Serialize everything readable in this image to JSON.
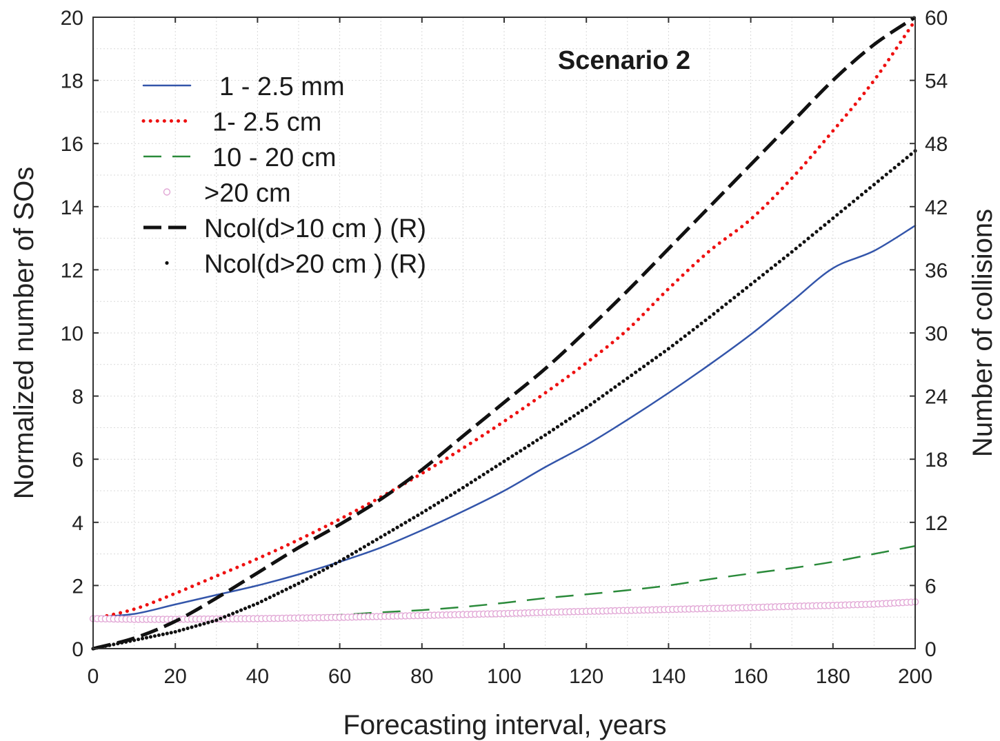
{
  "chart_data": {
    "type": "line",
    "annotation": "Scenario 2",
    "xlabel": "Forecasting interval, years",
    "ylabel": "Normalized number of SOs",
    "y2label": "Number of collisions",
    "xlim": [
      0,
      200
    ],
    "ylim": [
      0,
      20
    ],
    "y2lim": [
      0,
      60
    ],
    "xticks": [
      0,
      20,
      40,
      60,
      80,
      100,
      120,
      140,
      160,
      180,
      200
    ],
    "yticks": [
      0,
      2,
      4,
      6,
      8,
      10,
      12,
      14,
      16,
      18,
      20
    ],
    "y2ticks": [
      0,
      6,
      12,
      18,
      24,
      30,
      36,
      42,
      48,
      54,
      60
    ],
    "grid": true,
    "legend_position": "top-left",
    "series": [
      {
        "name": "1 - 2.5 mm",
        "axis": "left",
        "color": "#3355aa",
        "style": "solid",
        "x": [
          0,
          10,
          20,
          30,
          40,
          50,
          60,
          70,
          80,
          90,
          100,
          110,
          120,
          130,
          140,
          150,
          160,
          170,
          180,
          190,
          200
        ],
        "y": [
          1.0,
          1.1,
          1.4,
          1.7,
          2.0,
          2.35,
          2.75,
          3.2,
          3.75,
          4.35,
          5.0,
          5.75,
          6.45,
          7.25,
          8.1,
          9.0,
          9.95,
          11.0,
          12.05,
          12.6,
          13.4
        ]
      },
      {
        "name": "1- 2.5 cm",
        "axis": "left",
        "color": "#ee1111",
        "style": "dotted",
        "x": [
          0,
          10,
          20,
          30,
          40,
          50,
          60,
          70,
          80,
          90,
          100,
          110,
          120,
          130,
          140,
          150,
          160,
          170,
          180,
          190,
          200
        ],
        "y": [
          0.95,
          1.25,
          1.75,
          2.3,
          2.85,
          3.45,
          4.1,
          4.8,
          5.55,
          6.35,
          7.2,
          8.1,
          9.05,
          10.1,
          11.4,
          12.6,
          13.6,
          14.9,
          16.4,
          18.0,
          19.9
        ]
      },
      {
        "name": "10 - 20 cm",
        "axis": "left",
        "color": "#2a8a3a",
        "style": "longdash",
        "x": [
          0,
          10,
          20,
          30,
          40,
          50,
          60,
          70,
          80,
          90,
          100,
          110,
          120,
          130,
          140,
          150,
          160,
          170,
          180,
          190,
          200
        ],
        "y": [
          0.95,
          0.9,
          0.92,
          0.95,
          1.0,
          1.03,
          1.07,
          1.15,
          1.22,
          1.32,
          1.45,
          1.6,
          1.72,
          1.85,
          2.0,
          2.2,
          2.38,
          2.55,
          2.75,
          3.0,
          3.25
        ]
      },
      {
        "name": ">20 cm",
        "axis": "left",
        "color": "#e2a8d6",
        "style": "circles",
        "x": [
          0,
          10,
          20,
          30,
          40,
          50,
          60,
          70,
          80,
          90,
          100,
          110,
          120,
          130,
          140,
          150,
          160,
          170,
          180,
          190,
          200
        ],
        "y": [
          0.95,
          0.93,
          0.93,
          0.94,
          0.95,
          0.97,
          0.99,
          1.02,
          1.05,
          1.08,
          1.11,
          1.15,
          1.18,
          1.21,
          1.24,
          1.27,
          1.3,
          1.34,
          1.37,
          1.41,
          1.48
        ]
      },
      {
        "name": "Ncol(d>10 cm ) (R)",
        "axis": "right",
        "color": "#111111",
        "style": "dashed",
        "x": [
          0,
          10,
          20,
          30,
          40,
          50,
          60,
          70,
          80,
          90,
          100,
          110,
          120,
          130,
          140,
          150,
          160,
          170,
          180,
          190,
          200
        ],
        "y": [
          0,
          1.0,
          2.6,
          4.8,
          7.2,
          9.6,
          11.8,
          14.2,
          17.0,
          20.2,
          23.4,
          26.6,
          30.2,
          34.0,
          38.0,
          42.0,
          46.0,
          50.0,
          54.0,
          57.4,
          60.0
        ]
      },
      {
        "name": "Ncol(d>20 cm ) (R)",
        "axis": "right",
        "color": "#111111",
        "style": "dots",
        "x": [
          0,
          10,
          20,
          30,
          40,
          50,
          60,
          70,
          80,
          90,
          100,
          110,
          120,
          130,
          140,
          150,
          160,
          170,
          180,
          190,
          200
        ],
        "y": [
          0,
          0.8,
          1.6,
          2.7,
          4.3,
          6.2,
          8.3,
          10.6,
          12.9,
          15.3,
          17.8,
          20.3,
          22.9,
          25.7,
          28.5,
          31.5,
          34.6,
          37.7,
          40.9,
          44.1,
          47.3
        ]
      }
    ]
  }
}
